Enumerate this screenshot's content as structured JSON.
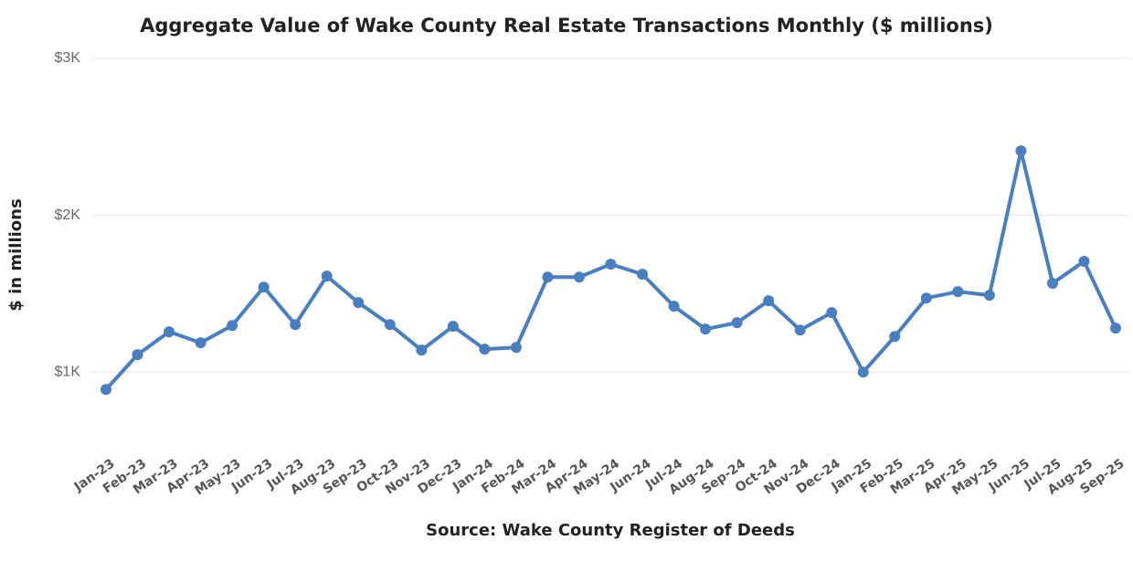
{
  "chart_data": {
    "type": "line",
    "title": "Aggregate Value of Wake County Real Estate Transactions Monthly ($ millions)",
    "y_label": "$ in millions",
    "x_label": "Source: Wake County Register of Deeds",
    "categories": [
      "Jan-23",
      "Feb-23",
      "Mar-23",
      "Apr-23",
      "May-23",
      "Jun-23",
      "Jul-23",
      "Aug-23",
      "Sep-23",
      "Oct-23",
      "Nov-23",
      "Dec-23",
      "Jan-24",
      "Feb-24",
      "Mar-24",
      "Apr-24",
      "May-24",
      "Jun-24",
      "Jul-24",
      "Aug-24",
      "Sep-24",
      "Oct-24",
      "Nov-24",
      "Dec-24",
      "Jan-25",
      "Feb-25",
      "Mar-25",
      "Apr-25",
      "May-25",
      "Jun-25",
      "Jul-25",
      "Aug-25",
      "Sep-25"
    ],
    "series": [
      {
        "name": "Aggregate Value",
        "color": "#4a7fbf",
        "values": [
          889,
          1111,
          1257,
          1187,
          1297,
          1542,
          1303,
          1612,
          1443,
          1303,
          1140,
          1292,
          1146,
          1157,
          1606,
          1606,
          1688,
          1624,
          1420,
          1274,
          1315,
          1455,
          1268,
          1379,
          1000,
          1227,
          1472,
          1513,
          1490,
          2411,
          1566,
          1706,
          1280
        ]
      }
    ],
    "ylim": [
      500,
      3000
    ],
    "yticks": [
      {
        "value": 1000,
        "label": "$1K"
      },
      {
        "value": 2000,
        "label": "$2K"
      },
      {
        "value": 3000,
        "label": "$3K"
      }
    ],
    "grid": true
  }
}
